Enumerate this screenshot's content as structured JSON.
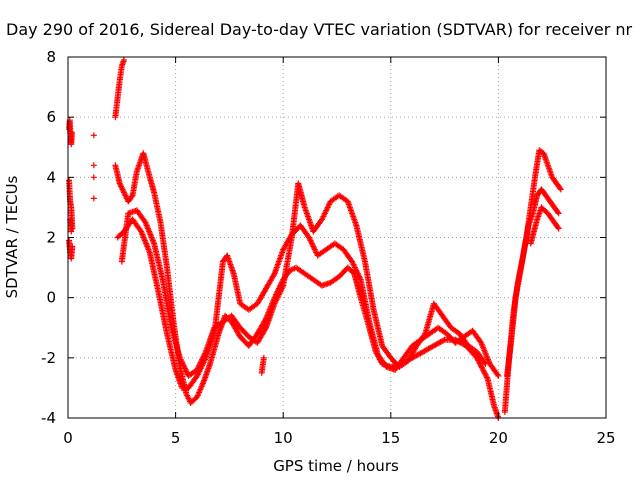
{
  "chart_data": {
    "type": "scatter",
    "title": "Day 290 of 2016, Sidereal Day-to-day VTEC variation (SDTVAR) for receiver nr",
    "xlabel": "GPS time / hours",
    "ylabel": "SDTVAR / TECUs",
    "xlim": [
      0,
      25
    ],
    "ylim": [
      -4,
      8
    ],
    "xticks": [
      0,
      5,
      10,
      15,
      20,
      25
    ],
    "yticks": [
      -4,
      -2,
      0,
      2,
      4,
      6,
      8
    ],
    "xtick_labels": [
      "0",
      "5",
      "10",
      "15",
      "20",
      "25"
    ],
    "ytick_labels": [
      "-4",
      "-2",
      "0",
      "2",
      "4",
      "6",
      "8"
    ],
    "grid": true,
    "marker": "+",
    "color": "#ff0000",
    "series": [
      {
        "points": [
          [
            0.05,
            5.6
          ],
          [
            0.08,
            5.9
          ],
          [
            0.12,
            5.3
          ],
          [
            0.15,
            5.1
          ],
          [
            0.18,
            5.5
          ],
          [
            0.05,
            3.9
          ],
          [
            0.1,
            3.2
          ],
          [
            0.15,
            3.0
          ],
          [
            0.2,
            2.3
          ],
          [
            0.05,
            1.9
          ],
          [
            0.1,
            1.5
          ],
          [
            0.15,
            1.3
          ],
          [
            0.2,
            1.7
          ],
          [
            0.1,
            2.6
          ],
          [
            0.15,
            2.2
          ],
          [
            1.2,
            5.4
          ],
          [
            1.2,
            4.4
          ],
          [
            1.2,
            4.0
          ],
          [
            1.2,
            3.3
          ]
        ]
      },
      {
        "points": [
          [
            2.2,
            6.0
          ],
          [
            2.3,
            6.6
          ],
          [
            2.4,
            7.2
          ],
          [
            2.5,
            7.7
          ],
          [
            2.6,
            7.9
          ],
          [
            2.2,
            4.4
          ],
          [
            2.4,
            3.8
          ],
          [
            2.6,
            3.5
          ],
          [
            2.8,
            3.2
          ],
          [
            3.0,
            3.4
          ],
          [
            3.2,
            4.2
          ],
          [
            3.5,
            4.8
          ],
          [
            3.8,
            4.0
          ],
          [
            4.0,
            3.5
          ],
          [
            4.3,
            2.5
          ],
          [
            4.6,
            1.0
          ],
          [
            4.9,
            -0.8
          ],
          [
            5.2,
            -2.3
          ],
          [
            5.5,
            -3.2
          ],
          [
            5.7,
            -3.5
          ],
          [
            6.0,
            -3.3
          ],
          [
            6.3,
            -2.8
          ],
          [
            6.6,
            -2.2
          ],
          [
            7.0,
            -1.2
          ],
          [
            7.3,
            -0.6
          ],
          [
            7.6,
            -0.8
          ],
          [
            8.0,
            -1.3
          ],
          [
            8.4,
            -1.6
          ],
          [
            8.8,
            -1.2
          ],
          [
            9.2,
            -0.7
          ],
          [
            9.6,
            0.0
          ],
          [
            10.0,
            0.6
          ],
          [
            10.3,
            0.9
          ],
          [
            10.6,
            1.0
          ],
          [
            11.0,
            0.8
          ],
          [
            11.4,
            0.6
          ],
          [
            11.8,
            0.4
          ],
          [
            12.2,
            0.5
          ],
          [
            12.6,
            0.7
          ],
          [
            13.0,
            1.0
          ],
          [
            13.3,
            0.8
          ],
          [
            13.6,
            0.0
          ],
          [
            14.0,
            -1.0
          ],
          [
            14.3,
            -1.8
          ],
          [
            14.6,
            -2.2
          ],
          [
            15.0,
            -2.3
          ],
          [
            15.5,
            -2.2
          ],
          [
            16.0,
            -2.0
          ],
          [
            16.5,
            -1.8
          ],
          [
            17.0,
            -1.6
          ],
          [
            17.5,
            -1.4
          ],
          [
            18.0,
            -1.4
          ],
          [
            18.5,
            -1.6
          ],
          [
            19.0,
            -2.0
          ],
          [
            19.5,
            -2.7
          ],
          [
            19.8,
            -3.6
          ],
          [
            20.0,
            -4.0
          ]
        ]
      },
      {
        "points": [
          [
            2.3,
            2.0
          ],
          [
            2.6,
            2.2
          ],
          [
            3.0,
            2.6
          ],
          [
            3.4,
            2.2
          ],
          [
            3.8,
            1.5
          ],
          [
            4.2,
            0.2
          ],
          [
            4.6,
            -1.2
          ],
          [
            5.0,
            -2.4
          ],
          [
            5.3,
            -3.0
          ],
          [
            5.6,
            -3.0
          ],
          [
            6.0,
            -2.6
          ],
          [
            6.4,
            -2.0
          ],
          [
            6.8,
            -1.2
          ],
          [
            7.2,
            1.2
          ],
          [
            7.4,
            1.4
          ],
          [
            7.7,
            0.8
          ],
          [
            8.0,
            -0.2
          ],
          [
            8.4,
            -0.4
          ],
          [
            8.8,
            -0.2
          ],
          [
            9.2,
            0.3
          ],
          [
            9.6,
            0.8
          ],
          [
            10.0,
            1.6
          ],
          [
            10.4,
            2.1
          ],
          [
            10.8,
            2.4
          ],
          [
            11.2,
            2.0
          ],
          [
            11.6,
            1.4
          ],
          [
            12.0,
            1.6
          ],
          [
            12.4,
            1.8
          ],
          [
            12.8,
            1.6
          ],
          [
            13.2,
            1.2
          ],
          [
            13.6,
            0.6
          ],
          [
            14.0,
            -0.8
          ],
          [
            14.4,
            -1.9
          ],
          [
            14.8,
            -2.3
          ],
          [
            15.2,
            -2.4
          ],
          [
            15.6,
            -2.0
          ],
          [
            16.0,
            -1.6
          ],
          [
            16.4,
            -1.4
          ],
          [
            16.8,
            -1.2
          ],
          [
            17.2,
            -1.0
          ],
          [
            17.6,
            -1.2
          ],
          [
            18.0,
            -1.5
          ],
          [
            18.4,
            -1.3
          ],
          [
            18.8,
            -1.1
          ],
          [
            19.2,
            -1.5
          ],
          [
            19.6,
            -2.2
          ],
          [
            20.0,
            -2.6
          ]
        ]
      },
      {
        "points": [
          [
            2.5,
            1.2
          ],
          [
            2.8,
            2.8
          ],
          [
            3.2,
            2.9
          ],
          [
            3.6,
            2.5
          ],
          [
            4.0,
            1.8
          ],
          [
            4.4,
            0.6
          ],
          [
            4.8,
            -1.0
          ],
          [
            5.2,
            -2.0
          ],
          [
            5.6,
            -2.6
          ],
          [
            6.0,
            -2.4
          ],
          [
            6.4,
            -1.8
          ],
          [
            6.8,
            -1.0
          ],
          [
            7.2,
            -0.8
          ],
          [
            7.6,
            -0.6
          ],
          [
            8.0,
            -1.0
          ],
          [
            8.4,
            -1.3
          ],
          [
            8.8,
            -1.5
          ],
          [
            9.2,
            -1.0
          ],
          [
            9.6,
            -0.2
          ],
          [
            10.0,
            0.4
          ],
          [
            10.4,
            2.0
          ],
          [
            10.7,
            3.8
          ],
          [
            11.0,
            3.0
          ],
          [
            11.4,
            2.2
          ],
          [
            11.8,
            2.6
          ],
          [
            12.2,
            3.2
          ],
          [
            12.6,
            3.4
          ],
          [
            13.0,
            3.2
          ],
          [
            13.4,
            2.4
          ],
          [
            13.8,
            1.2
          ],
          [
            14.2,
            -0.4
          ],
          [
            14.6,
            -1.6
          ],
          [
            15.0,
            -2.0
          ],
          [
            15.4,
            -2.3
          ],
          [
            15.8,
            -2.1
          ],
          [
            16.2,
            -1.6
          ],
          [
            16.6,
            -1.2
          ],
          [
            17.0,
            -0.2
          ],
          [
            17.4,
            -0.6
          ],
          [
            17.8,
            -1.0
          ],
          [
            18.2,
            -1.2
          ],
          [
            18.6,
            -1.6
          ],
          [
            19.0,
            -1.8
          ],
          [
            19.4,
            -2.2
          ],
          [
            9.0,
            -2.5
          ],
          [
            9.1,
            -2.0
          ]
        ]
      },
      {
        "points": [
          [
            20.3,
            -3.8
          ],
          [
            20.5,
            -2.0
          ],
          [
            20.7,
            -0.5
          ],
          [
            20.9,
            0.5
          ],
          [
            21.1,
            1.2
          ],
          [
            21.3,
            2.0
          ],
          [
            21.5,
            3.0
          ],
          [
            21.7,
            4.0
          ],
          [
            21.9,
            4.9
          ],
          [
            22.1,
            4.8
          ],
          [
            22.3,
            4.4
          ],
          [
            22.5,
            4.0
          ],
          [
            22.7,
            3.8
          ],
          [
            22.9,
            3.6
          ],
          [
            20.4,
            -2.6
          ],
          [
            20.6,
            -1.4
          ],
          [
            20.8,
            0.0
          ],
          [
            21.0,
            0.8
          ],
          [
            21.2,
            1.6
          ],
          [
            21.4,
            2.4
          ],
          [
            21.6,
            2.8
          ],
          [
            21.8,
            3.4
          ],
          [
            22.0,
            3.6
          ],
          [
            22.2,
            3.4
          ],
          [
            22.4,
            3.2
          ],
          [
            22.6,
            3.0
          ],
          [
            22.8,
            2.8
          ],
          [
            21.5,
            1.8
          ],
          [
            21.8,
            2.6
          ],
          [
            22.0,
            3.0
          ],
          [
            22.3,
            2.8
          ],
          [
            22.6,
            2.5
          ],
          [
            22.8,
            2.3
          ]
        ]
      }
    ]
  }
}
